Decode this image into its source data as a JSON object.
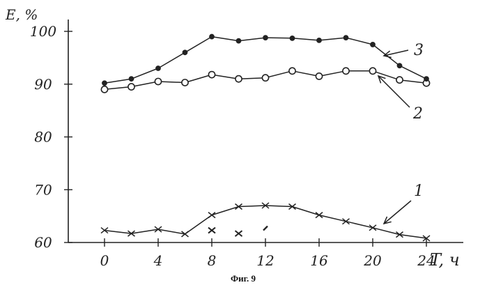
{
  "chart_data": {
    "type": "line",
    "caption": "Фиг. 9",
    "xlabel": "T, ч",
    "ylabel": "E, %",
    "xlim": [
      0,
      24
    ],
    "ylim": [
      60,
      100
    ],
    "x_ticks": [
      "0",
      "4",
      "8",
      "12",
      "16",
      "20",
      "24"
    ],
    "y_ticks": [
      "60",
      "70",
      "80",
      "90",
      "100"
    ],
    "grid": false,
    "series": [
      {
        "name": "1",
        "marker": "x",
        "x": [
          0,
          2,
          4,
          6,
          8,
          10,
          12,
          14,
          16,
          18,
          20,
          22,
          24
        ],
        "y": [
          62.3,
          61.7,
          62.5,
          61.6,
          65.2,
          66.8,
          67.0,
          66.8,
          65.2,
          64.0,
          62.8,
          61.5,
          60.8
        ]
      },
      {
        "name": "2",
        "marker": "open-circle",
        "x": [
          0,
          2,
          4,
          6,
          8,
          10,
          12,
          14,
          16,
          18,
          20,
          22,
          24
        ],
        "y": [
          89.0,
          89.5,
          90.5,
          90.3,
          91.8,
          91.0,
          91.2,
          92.5,
          91.5,
          92.5,
          92.5,
          90.8,
          90.2
        ]
      },
      {
        "name": "3",
        "marker": "filled-circle",
        "x": [
          0,
          2,
          4,
          6,
          8,
          10,
          12,
          14,
          16,
          18,
          20,
          22,
          24
        ],
        "y": [
          90.2,
          91.0,
          93.0,
          96.0,
          99.0,
          98.2,
          98.8,
          98.7,
          98.3,
          98.8,
          97.5,
          93.5,
          91.0
        ]
      }
    ],
    "stray_marks": [
      {
        "x": 8,
        "y": 62.3
      },
      {
        "x": 10,
        "y": 61.7
      },
      {
        "x": 12,
        "y": 62.7
      }
    ],
    "colors": {
      "ink": "#222222"
    }
  }
}
